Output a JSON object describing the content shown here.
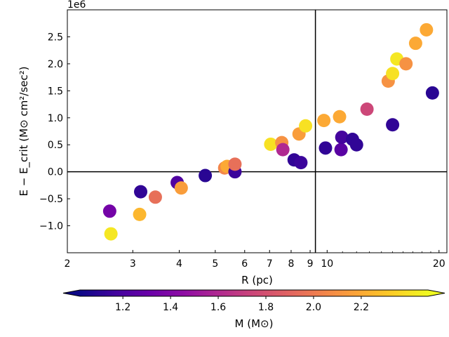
{
  "chart_data": {
    "type": "scatter",
    "title": "",
    "offset_label": "1e6",
    "xlabel": "R (pc)",
    "ylabel": "E − E_crit (M⊙ cm²/sec²)",
    "x_scale": "log",
    "xlim": [
      2,
      21
    ],
    "ylim": [
      -1.5,
      3.0
    ],
    "x_ticks": [
      2,
      3,
      4,
      5,
      6,
      7,
      8,
      9,
      10,
      20
    ],
    "x_tick_labels": [
      "2",
      "3",
      "4",
      "5",
      "6",
      "7",
      "8",
      "9",
      "10",
      "20"
    ],
    "y_ticks": [
      -1.0,
      -0.5,
      0.0,
      0.5,
      1.0,
      1.5,
      2.0,
      2.5
    ],
    "y_tick_labels": [
      "−1.0",
      "−0.5",
      "0.0",
      "0.5",
      "1.0",
      "1.5",
      "2.0",
      "2.5"
    ],
    "reference_lines": {
      "horizontal_y": 0.0,
      "vertical_x": 9.3
    },
    "colorbar": {
      "label": "M (M⊙)",
      "colormap": "plasma",
      "range": [
        1.02,
        2.48
      ],
      "ticks": [
        1.2,
        1.4,
        1.6,
        1.8,
        2.0,
        2.2
      ],
      "tick_labels": [
        "1.2",
        "1.4",
        "1.6",
        "1.8",
        "2.0",
        "2.2"
      ],
      "extend": "both"
    },
    "points": [
      {
        "R": 2.6,
        "E": -0.73,
        "M": 1.35
      },
      {
        "R": 2.62,
        "E": -1.15,
        "M": 2.42
      },
      {
        "R": 3.15,
        "E": -0.37,
        "M": 1.12
      },
      {
        "R": 3.13,
        "E": -0.79,
        "M": 2.25
      },
      {
        "R": 3.45,
        "E": -0.47,
        "M": 1.95
      },
      {
        "R": 3.95,
        "E": -0.2,
        "M": 1.22
      },
      {
        "R": 4.05,
        "E": -0.3,
        "M": 2.15
      },
      {
        "R": 4.7,
        "E": -0.07,
        "M": 1.1
      },
      {
        "R": 5.3,
        "E": 0.07,
        "M": 2.05
      },
      {
        "R": 5.38,
        "E": 0.1,
        "M": 2.2
      },
      {
        "R": 5.65,
        "E": 0.0,
        "M": 1.15
      },
      {
        "R": 5.65,
        "E": 0.14,
        "M": 1.95
      },
      {
        "R": 7.05,
        "E": 0.51,
        "M": 2.4
      },
      {
        "R": 7.55,
        "E": 0.54,
        "M": 2.1
      },
      {
        "R": 7.6,
        "E": 0.41,
        "M": 1.6
      },
      {
        "R": 8.15,
        "E": 0.22,
        "M": 1.12
      },
      {
        "R": 8.5,
        "E": 0.17,
        "M": 1.15
      },
      {
        "R": 8.4,
        "E": 0.7,
        "M": 2.15
      },
      {
        "R": 8.75,
        "E": 0.85,
        "M": 2.4
      },
      {
        "R": 9.8,
        "E": 0.95,
        "M": 2.2
      },
      {
        "R": 9.9,
        "E": 0.44,
        "M": 1.12
      },
      {
        "R": 10.8,
        "E": 1.02,
        "M": 2.2
      },
      {
        "R": 10.9,
        "E": 0.41,
        "M": 1.25
      },
      {
        "R": 10.95,
        "E": 0.64,
        "M": 1.18
      },
      {
        "R": 11.7,
        "E": 0.6,
        "M": 1.12
      },
      {
        "R": 12.0,
        "E": 0.5,
        "M": 1.12
      },
      {
        "R": 12.8,
        "E": 1.16,
        "M": 1.75
      },
      {
        "R": 14.6,
        "E": 1.68,
        "M": 2.1
      },
      {
        "R": 15.0,
        "E": 0.87,
        "M": 1.12
      },
      {
        "R": 15.0,
        "E": 1.82,
        "M": 2.4
      },
      {
        "R": 15.4,
        "E": 2.09,
        "M": 2.42
      },
      {
        "R": 16.3,
        "E": 2.0,
        "M": 2.1
      },
      {
        "R": 17.3,
        "E": 2.38,
        "M": 2.2
      },
      {
        "R": 18.5,
        "E": 2.63,
        "M": 2.2
      },
      {
        "R": 19.2,
        "E": 1.46,
        "M": 1.1
      }
    ]
  }
}
